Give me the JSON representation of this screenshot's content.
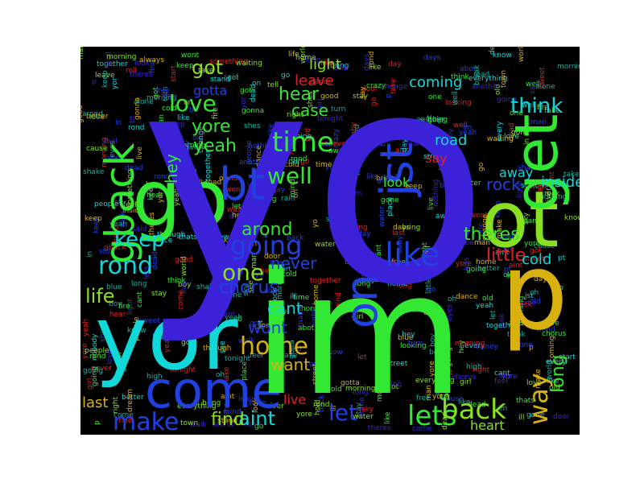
{
  "word_cloud": {
    "background": "#000000",
    "palette": {
      "violet": "#3b22d9",
      "blue": "#2040e0",
      "cyan": "#10d8d8",
      "green": "#33e833",
      "lime": "#88e020",
      "yellow": "#d8b010",
      "red": "#e02020",
      "teal": "#18b0a0"
    },
    "words": [
      "yo",
      "im",
      "yor",
      "go",
      "ot",
      "p",
      "come",
      "get",
      "gback",
      "jst",
      "bt",
      "in",
      "on",
      "like",
      "love",
      "got",
      "home",
      "yore",
      "yeah",
      "time",
      "well",
      "keep",
      "rond",
      "going",
      "one",
      "make",
      "aint",
      "let",
      "lets",
      "back",
      "way",
      "long",
      "see",
      "little",
      "cold",
      "theres",
      "never",
      "arond",
      "chorus",
      "life",
      "cant",
      "wont",
      "want",
      "find",
      "hear",
      "case",
      "leave",
      "light",
      "coming",
      "think",
      "rock",
      "inside",
      "away",
      "road",
      "say",
      "look",
      "hey",
      "gotta",
      "live",
      "last",
      "heart",
      "door",
      "ride",
      "roll",
      "old",
      "through",
      "mind",
      "better",
      "said",
      "stay",
      "day",
      "take",
      "ill",
      "right",
      "know",
      "oh",
      "baby",
      "gonna",
      "night",
      "tonight",
      "world",
      "place",
      "stop",
      "eyes",
      "good",
      "gone",
      "tell",
      "feel",
      "dance",
      "thats",
      "alone",
      "walk",
      "head",
      "every",
      "fire",
      "man",
      "days",
      "high",
      "girl",
      "abot",
      "pt",
      "rain",
      "waiting",
      "hold",
      "stand",
      "free",
      "sky",
      "people",
      "believe",
      "well",
      "town",
      "street",
      "morning",
      "boy",
      "water",
      "start",
      "morning",
      "shes",
      "change",
      "together",
      "dream",
      "another",
      "always",
      "looking",
      "living",
      "nothing",
      "something",
      "everything",
      "crazy",
      "sweet",
      "blue",
      "river",
      "money",
      "shake",
      "break",
      "bring",
      "dead",
      "turn",
      "long",
      "cause",
      "nobody"
    ]
  }
}
